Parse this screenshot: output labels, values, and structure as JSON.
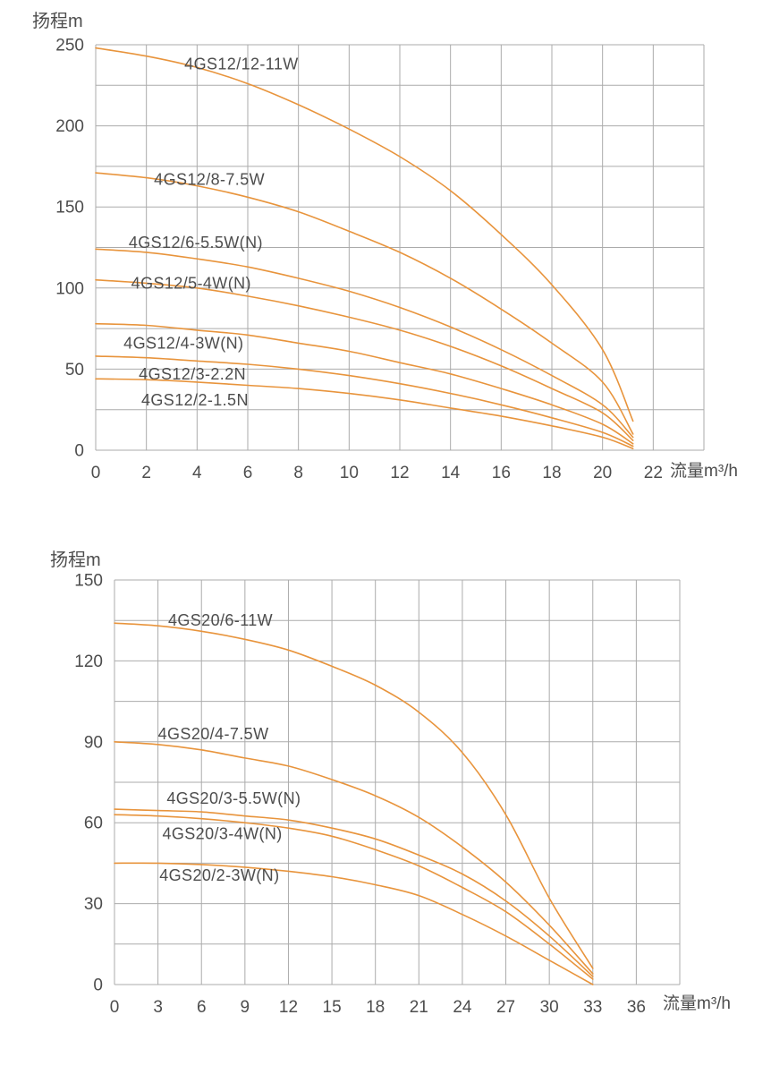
{
  "page": {
    "background": "#ffffff"
  },
  "colors": {
    "curve": "#E8943C",
    "grid": "#ABABAB",
    "text": "#4D4D4D"
  },
  "chart_data": [
    {
      "type": "line",
      "ylabel": "扬程m",
      "xlabel": "流量m³/h",
      "grid": true,
      "legend_position": "inline-labels",
      "x_axis_range": [
        0,
        24
      ],
      "y_axis_range": [
        0,
        250
      ],
      "x_grid_step": 2,
      "y_grid_step": 25,
      "x_ticks": [
        0,
        2,
        4,
        6,
        8,
        10,
        12,
        14,
        16,
        18,
        20,
        22
      ],
      "y_ticks": [
        0,
        50,
        100,
        150,
        200,
        250
      ],
      "series": [
        {
          "name": "4GS12/12-11W",
          "label_x": 3.5,
          "label_y": 238,
          "x": [
            0,
            2,
            4,
            6,
            8,
            10,
            12,
            14,
            16,
            18,
            20,
            21.2
          ],
          "y": [
            248,
            243,
            236,
            226,
            213,
            198,
            181,
            160,
            133,
            102,
            62,
            18
          ]
        },
        {
          "name": "4GS12/8-7.5W",
          "label_x": 2.3,
          "label_y": 167,
          "x": [
            0,
            2,
            4,
            6,
            8,
            10,
            12,
            14,
            16,
            18,
            20,
            21.2
          ],
          "y": [
            171,
            168,
            163,
            156,
            147,
            135,
            122,
            106,
            87,
            66,
            42,
            10
          ]
        },
        {
          "name": "4GS12/6-5.5W(N)",
          "label_x": 1.3,
          "label_y": 128,
          "x": [
            0,
            2,
            4,
            6,
            8,
            10,
            12,
            14,
            16,
            18,
            20,
            21.2
          ],
          "y": [
            124,
            122,
            118,
            113,
            106,
            98,
            88,
            76,
            62,
            46,
            28,
            8
          ]
        },
        {
          "name": "4GS12/5-4W(N)",
          "label_x": 1.4,
          "label_y": 103,
          "x": [
            0,
            2,
            4,
            6,
            8,
            10,
            12,
            14,
            16,
            18,
            20,
            21.2
          ],
          "y": [
            105,
            103,
            100,
            95,
            89,
            82,
            74,
            64,
            52,
            38,
            23,
            6
          ]
        },
        {
          "name": "4GS12/4-3W(N)",
          "label_x": 1.1,
          "label_y": 66,
          "x": [
            0,
            2,
            4,
            6,
            8,
            10,
            12,
            14,
            16,
            18,
            20,
            21.2
          ],
          "y": [
            78,
            77,
            74,
            71,
            66,
            61,
            54,
            47,
            38,
            28,
            16,
            4
          ]
        },
        {
          "name": "4GS12/3-2.2N",
          "label_x": 1.7,
          "label_y": 47,
          "x": [
            0,
            2,
            4,
            6,
            8,
            10,
            12,
            14,
            16,
            18,
            20,
            21.2
          ],
          "y": [
            58,
            57,
            55,
            53,
            50,
            46,
            41,
            35,
            28,
            20,
            11,
            2.5
          ]
        },
        {
          "name": "4GS12/2-1.5N",
          "label_x": 1.8,
          "label_y": 31,
          "x": [
            0,
            2,
            4,
            6,
            8,
            10,
            12,
            14,
            16,
            18,
            20,
            21.2
          ],
          "y": [
            44,
            43.5,
            42,
            40,
            38,
            35,
            31,
            26,
            21,
            15,
            8,
            1
          ]
        }
      ]
    },
    {
      "type": "line",
      "ylabel": "扬程m",
      "xlabel": "流量m³/h",
      "grid": true,
      "legend_position": "inline-labels",
      "x_axis_range": [
        0,
        39
      ],
      "y_axis_range": [
        0,
        150
      ],
      "x_grid_step": 3,
      "y_grid_step": 15,
      "x_ticks": [
        0,
        3,
        6,
        9,
        12,
        15,
        18,
        21,
        24,
        27,
        30,
        33,
        36
      ],
      "y_ticks": [
        0,
        30,
        60,
        90,
        120,
        150
      ],
      "series": [
        {
          "name": "4GS20/6-11W",
          "label_x": 3.7,
          "label_y": 135,
          "x": [
            0,
            3,
            6,
            9,
            12,
            15,
            18,
            21,
            24,
            27,
            30,
            33
          ],
          "y": [
            134,
            133,
            131,
            128,
            124,
            118,
            111,
            101,
            86,
            63,
            32,
            6
          ]
        },
        {
          "name": "4GS20/4-7.5W",
          "label_x": 3.0,
          "label_y": 93,
          "x": [
            0,
            3,
            6,
            9,
            12,
            15,
            18,
            21,
            24,
            27,
            30,
            33
          ],
          "y": [
            90,
            89,
            87,
            84,
            81,
            76,
            70,
            62,
            51,
            38,
            22,
            4
          ]
        },
        {
          "name": "4GS20/3-5.5W(N)",
          "label_x": 3.6,
          "label_y": 69,
          "x": [
            0,
            3,
            6,
            9,
            12,
            15,
            18,
            21,
            24,
            27,
            30,
            33
          ],
          "y": [
            65,
            64.5,
            64,
            62.5,
            61,
            58,
            54,
            48,
            41,
            31,
            18,
            3
          ]
        },
        {
          "name": "4GS20/3-4W(N)",
          "label_x": 3.3,
          "label_y": 56,
          "x": [
            0,
            3,
            6,
            9,
            12,
            15,
            18,
            21,
            24,
            27,
            30,
            33
          ],
          "y": [
            63,
            62.5,
            61.5,
            60,
            58,
            55,
            50,
            44,
            36,
            27,
            15,
            2
          ]
        },
        {
          "name": "4GS20/2-3W(N)",
          "label_x": 3.1,
          "label_y": 40.5,
          "x": [
            0,
            3,
            6,
            9,
            12,
            15,
            18,
            21,
            24,
            27,
            30,
            33
          ],
          "y": [
            45,
            45,
            44.5,
            43.5,
            42,
            40,
            37,
            33,
            26,
            18,
            9,
            0
          ]
        }
      ]
    }
  ]
}
